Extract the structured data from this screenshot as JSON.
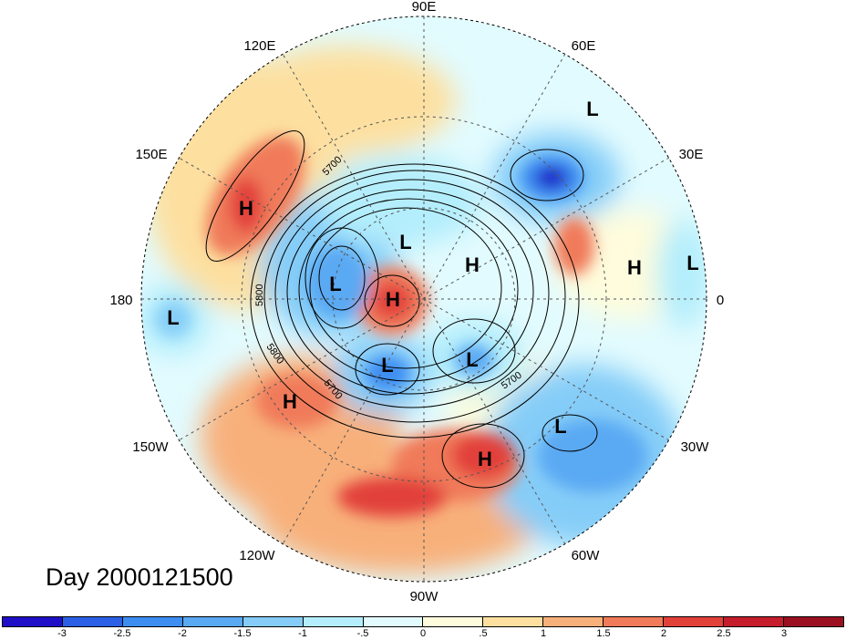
{
  "title": "Day 2000121500",
  "map": {
    "projection": "north-polar-stereographic",
    "longitude_labels": [
      "90E",
      "60E",
      "30E",
      "0",
      "30W",
      "60W",
      "90W",
      "120W",
      "150W",
      "180",
      "150E",
      "120E"
    ],
    "contour_labels": [
      "5700",
      "5800",
      "5800",
      "5700",
      "5700"
    ],
    "pressure_centers": [
      {
        "symbol": "H",
        "region": "far-east-russia",
        "anomaly": "positive"
      },
      {
        "symbol": "L",
        "region": "urals",
        "anomaly": "negative"
      },
      {
        "symbol": "L",
        "region": "siberia",
        "anomaly": "negative"
      },
      {
        "symbol": "H",
        "region": "arctic-ocean",
        "anomaly": "positive"
      },
      {
        "symbol": "H",
        "region": "europe",
        "anomaly": "neutral"
      },
      {
        "symbol": "L",
        "region": "western-europe",
        "anomaly": "negative"
      },
      {
        "symbol": "L",
        "region": "bering-sea",
        "anomaly": "negative"
      },
      {
        "symbol": "H",
        "region": "alaska",
        "anomaly": "positive"
      },
      {
        "symbol": "L",
        "region": "central-pacific",
        "anomaly": "negative"
      },
      {
        "symbol": "L",
        "region": "western-canada",
        "anomaly": "negative"
      },
      {
        "symbol": "L",
        "region": "hudson-bay",
        "anomaly": "negative"
      },
      {
        "symbol": "H",
        "region": "eastern-pacific",
        "anomaly": "positive"
      },
      {
        "symbol": "H",
        "region": "eastern-usa",
        "anomaly": "positive"
      },
      {
        "symbol": "L",
        "region": "north-atlantic",
        "anomaly": "negative"
      }
    ]
  },
  "colorbar": {
    "ticks": [
      "-3",
      "-2.5",
      "-2",
      "-1.5",
      "-1",
      "-.5",
      "0",
      ".5",
      "1",
      "1.5",
      "2",
      "2.5",
      "3"
    ],
    "colors": [
      "#1f0fc6",
      "#2a5fe6",
      "#3e8ef2",
      "#5aa9f3",
      "#85cdf8",
      "#b4eefc",
      "#e2fbfe",
      "#fefcdc",
      "#fde0a0",
      "#f8b07a",
      "#f07a5a",
      "#e2413a",
      "#c51d2c",
      "#9a1020"
    ]
  }
}
